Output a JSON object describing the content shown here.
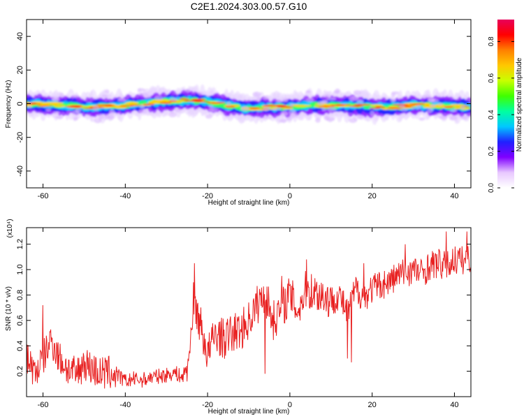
{
  "title": "C2E1.2024.303.00.57.G10",
  "chart_data": [
    {
      "type": "heatmap",
      "xlabel": "Height of straight line (km)",
      "ylabel": "Frequency (Hz)",
      "xlim": [
        -64,
        44
      ],
      "ylim": [
        -50,
        50
      ],
      "x_ticks": [
        -60,
        -40,
        -20,
        0,
        20,
        40
      ],
      "y_ticks": [
        -40,
        -20,
        0,
        20,
        40
      ],
      "colorbar": {
        "label": "Normalized spectral amplitude",
        "range": [
          0,
          0.92
        ],
        "ticks": [
          "0.0",
          "0.2",
          "0.4",
          "0.6",
          "0.8"
        ],
        "colors": [
          "#ffffff",
          "#e8c8ff",
          "#8000ff",
          "#2020ff",
          "#00c8ff",
          "#00ffa0",
          "#40ff00",
          "#c8ff00",
          "#ffc800",
          "#ff8000",
          "#ff0000",
          "#e8005a"
        ]
      },
      "ridge_frequency_hz": [
        [
          -64,
          0
        ],
        [
          -55,
          -1
        ],
        [
          -48,
          -2
        ],
        [
          -40,
          -1
        ],
        [
          -32,
          1
        ],
        [
          -25,
          2
        ],
        [
          -20,
          1
        ],
        [
          -15,
          -1
        ],
        [
          -10,
          -3
        ],
        [
          -5,
          -2
        ],
        [
          0,
          -2
        ],
        [
          5,
          -1
        ],
        [
          10,
          -1
        ],
        [
          15,
          -1
        ],
        [
          20,
          -2
        ],
        [
          25,
          -2
        ],
        [
          30,
          -1
        ],
        [
          35,
          -1
        ],
        [
          44,
          -2
        ]
      ]
    },
    {
      "type": "line",
      "xlabel": "Height of straight line (km)",
      "ylabel": "SNR (10 * v/v)",
      "y_multiplier": "(x10⁴)",
      "xlim": [
        -64,
        44
      ],
      "ylim": [
        0,
        1.33
      ],
      "x_ticks": [
        -60,
        -40,
        -20,
        0,
        20,
        40
      ],
      "y_ticks": [
        "0.2",
        "0.4",
        "0.6",
        "0.8",
        "1.0",
        "1.2"
      ],
      "series": [
        {
          "color": "#e82020",
          "points": [
            [
              -64,
              0.33
            ],
            [
              -62,
              0.18
            ],
            [
              -60,
              0.3
            ],
            [
              -58,
              0.45
            ],
            [
              -56,
              0.3
            ],
            [
              -54,
              0.22
            ],
            [
              -52,
              0.17
            ],
            [
              -50,
              0.27
            ],
            [
              -48,
              0.22
            ],
            [
              -46,
              0.18
            ],
            [
              -44,
              0.19
            ],
            [
              -42,
              0.17
            ],
            [
              -40,
              0.12
            ],
            [
              -38,
              0.14
            ],
            [
              -36,
              0.13
            ],
            [
              -34,
              0.15
            ],
            [
              -32,
              0.16
            ],
            [
              -30,
              0.17
            ],
            [
              -28,
              0.19
            ],
            [
              -26,
              0.15
            ],
            [
              -24.5,
              0.3
            ],
            [
              -23.5,
              0.75
            ],
            [
              -22,
              0.6
            ],
            [
              -20,
              0.33
            ],
            [
              -18,
              0.5
            ],
            [
              -16,
              0.45
            ],
            [
              -14,
              0.5
            ],
            [
              -12,
              0.52
            ],
            [
              -10,
              0.6
            ],
            [
              -8,
              0.72
            ],
            [
              -6,
              0.8
            ],
            [
              -4,
              0.6
            ],
            [
              -2,
              0.7
            ],
            [
              0,
              0.8
            ],
            [
              2,
              0.68
            ],
            [
              4,
              0.85
            ],
            [
              6,
              0.82
            ],
            [
              8,
              0.8
            ],
            [
              10,
              0.75
            ],
            [
              12,
              0.8
            ],
            [
              14,
              0.65
            ],
            [
              16,
              0.85
            ],
            [
              18,
              0.78
            ],
            [
              20,
              0.85
            ],
            [
              22,
              0.88
            ],
            [
              24,
              0.9
            ],
            [
              26,
              0.95
            ],
            [
              28,
              0.98
            ],
            [
              30,
              1.0
            ],
            [
              32,
              0.97
            ],
            [
              34,
              1.03
            ],
            [
              36,
              1.05
            ],
            [
              38,
              1.02
            ],
            [
              40,
              1.08
            ],
            [
              42,
              1.07
            ],
            [
              44,
              1.1
            ]
          ],
          "spikes": [
            [
              -60,
              0.72
            ],
            [
              -23.2,
              1.05
            ],
            [
              -25,
              0.12
            ],
            [
              -6,
              0.18
            ],
            [
              -2,
              0.95
            ],
            [
              4,
              1.08
            ],
            [
              14,
              0.3
            ],
            [
              15,
              0.27
            ],
            [
              18,
              1.05
            ],
            [
              28,
              1.2
            ],
            [
              38,
              1.3
            ],
            [
              43,
              1.3
            ]
          ]
        }
      ]
    }
  ]
}
